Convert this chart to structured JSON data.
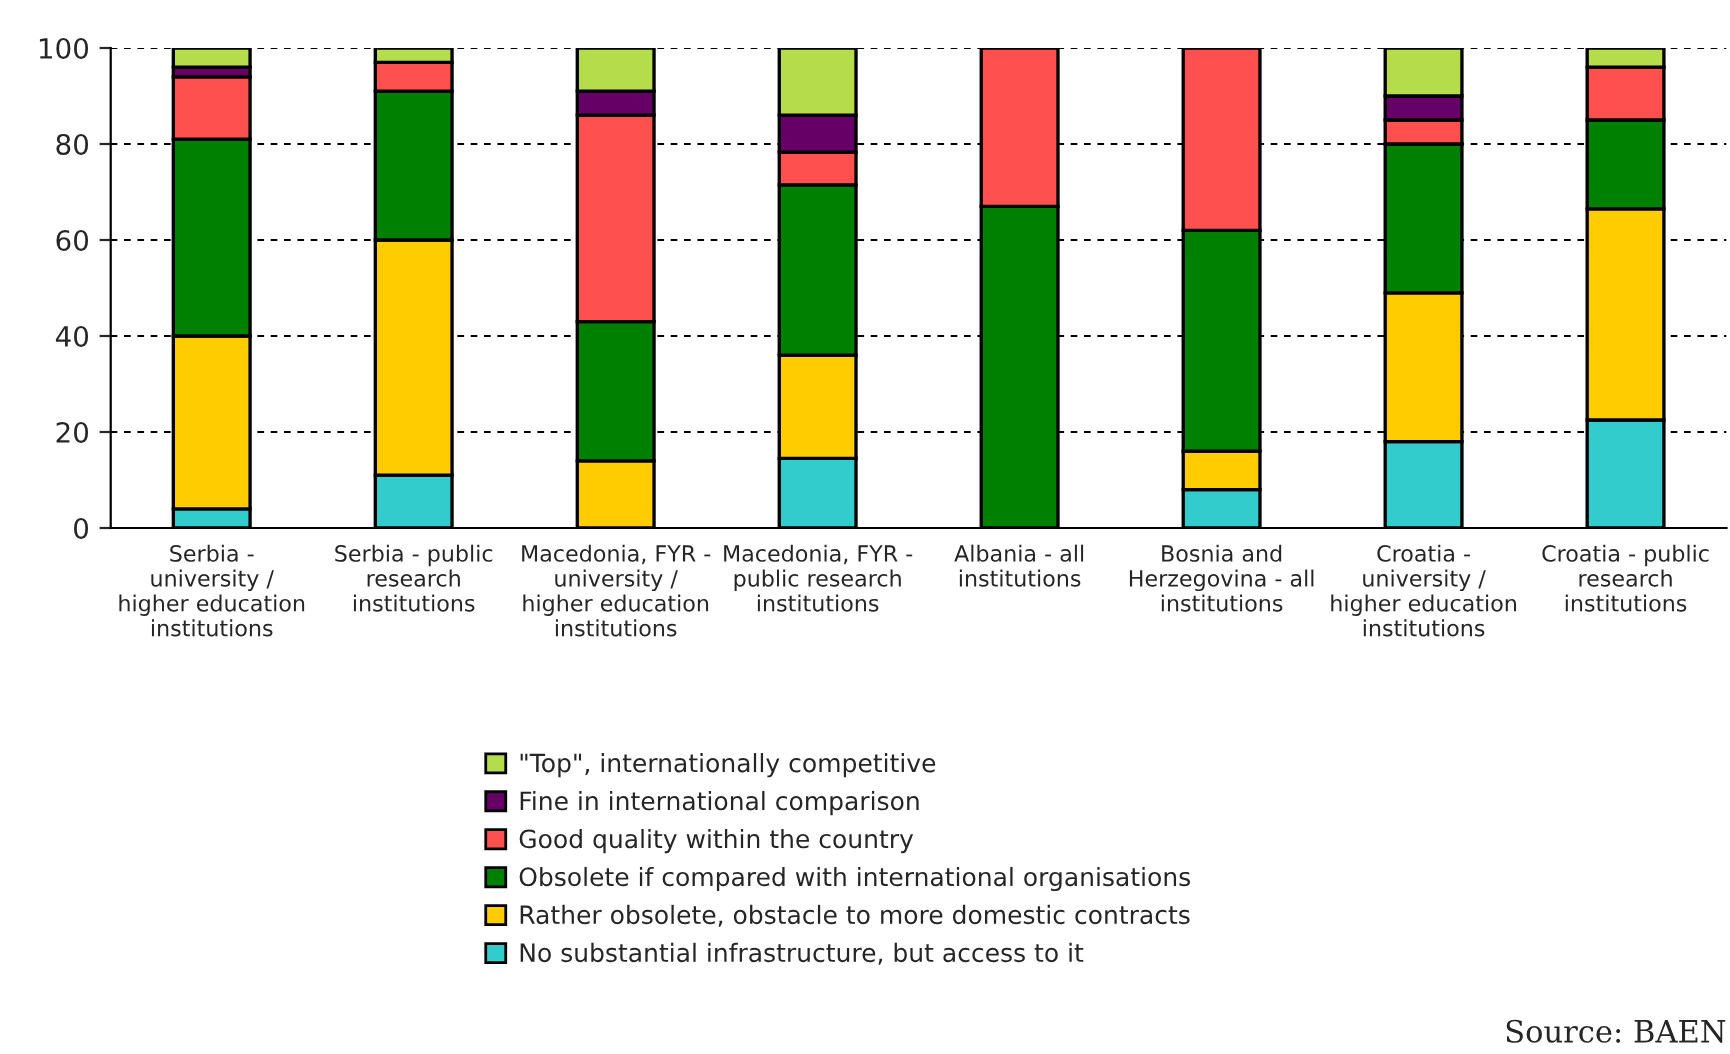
{
  "chart_data": {
    "type": "bar",
    "stacked": true,
    "categories": [
      "Serbia - university / higher education institutions",
      "Serbia - public research institutions",
      "Macedonia, FYR - university / higher education institutions",
      "Macedonia, FYR - public research institutions",
      "Albania - all institutions",
      "Bosnia and Herzegovina - all institutions",
      "Croatia - university / higher education institutions",
      "Croatia - public research institutions"
    ],
    "series": [
      {
        "name": "No substantial infrastructure, but access to it",
        "color": "#33cccc",
        "values": [
          4,
          11,
          0,
          14.5,
          0,
          8,
          18,
          22.5
        ]
      },
      {
        "name": "Rather obsolete, obstacle to more domestic contracts",
        "color": "#ffcc00",
        "values": [
          36,
          49,
          14,
          21.5,
          0,
          8,
          31,
          44
        ]
      },
      {
        "name": "Obsolete if compared with international organisations",
        "color": "#008000",
        "values": [
          41,
          31,
          29,
          35.5,
          67,
          46,
          31,
          18.5
        ]
      },
      {
        "name": "Good quality within the country",
        "color": "#ff5050",
        "values": [
          13,
          6,
          43,
          6.8,
          33,
          38,
          5,
          11
        ]
      },
      {
        "name": "Fine in international comparison",
        "color": "#660066",
        "values": [
          2,
          0,
          5,
          7.7,
          0,
          0,
          5,
          0
        ]
      },
      {
        "name": "\"Top\", internationally competitive",
        "color": "#b5dc4a",
        "values": [
          4,
          3,
          9,
          14,
          0,
          0,
          10,
          4
        ]
      }
    ],
    "ylim": [
      0,
      100
    ],
    "yticks": [
      0,
      20,
      40,
      60,
      80,
      100
    ],
    "grid": "y",
    "legend": "bottom",
    "annotations": [
      "Source: BAEN"
    ]
  }
}
